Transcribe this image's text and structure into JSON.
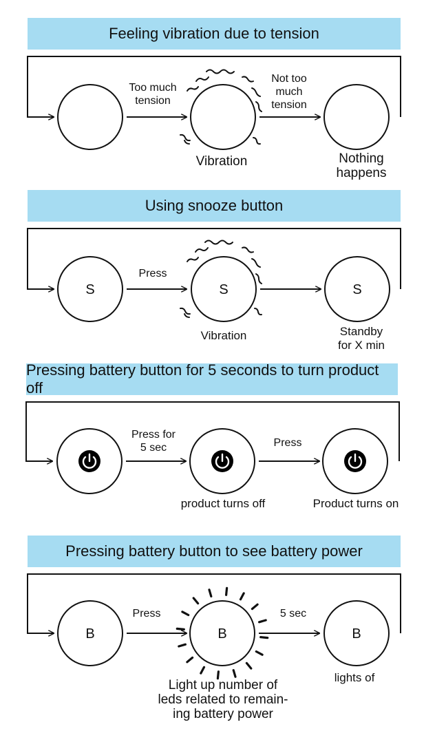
{
  "sections": [
    {
      "title": "Feeling vibration due to tension",
      "edge1": [
        "Too much",
        "tension"
      ],
      "edge2": [
        "Not too",
        "much",
        "tension"
      ],
      "node2_label": [
        "Vibration"
      ],
      "node3_label": [
        "Nothing",
        "happens"
      ],
      "letters": [
        "",
        "",
        ""
      ]
    },
    {
      "title": "Using snooze button",
      "edge1": [
        "Press"
      ],
      "edge2": [],
      "node2_label": [
        "Vibration"
      ],
      "node3_label": [
        "Standby",
        "for X min"
      ],
      "letters": [
        "S",
        "S",
        "S"
      ]
    },
    {
      "title": "Pressing battery button for 5 seconds to turn product off",
      "edge1": [
        "Press for",
        "5 sec"
      ],
      "edge2": [
        "Press"
      ],
      "node2_label": [
        "product turns off"
      ],
      "node3_label": [
        "Product turns on"
      ],
      "icons": [
        "power-icon",
        "power-icon",
        "power-icon"
      ]
    },
    {
      "title": "Pressing battery button to see battery power",
      "edge1": [
        "Press"
      ],
      "edge2": [
        "5 sec"
      ],
      "node2_label": [
        "Light up number of",
        "leds related to remain-",
        "ing battery power"
      ],
      "node3_label": [
        "lights of"
      ],
      "letters": [
        "B",
        "B",
        "B"
      ]
    }
  ],
  "colors": {
    "banner": "#a6dcf2",
    "stroke": "#111111",
    "icon_fill": "#000000"
  }
}
